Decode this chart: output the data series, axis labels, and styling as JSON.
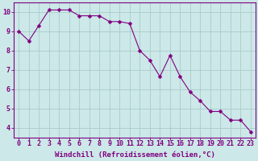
{
  "x_points": [
    0,
    1,
    2,
    3,
    4,
    5,
    6,
    7,
    8,
    9,
    10,
    11,
    12,
    13,
    14,
    15,
    16,
    17,
    18,
    19,
    20,
    21,
    22,
    23
  ],
  "y_points": [
    9.0,
    8.5,
    9.3,
    10.1,
    10.1,
    10.1,
    9.8,
    9.8,
    9.8,
    9.5,
    9.5,
    9.4,
    8.0,
    7.5,
    6.65,
    7.75,
    6.65,
    5.85,
    5.4,
    4.85,
    4.85,
    4.4,
    4.4,
    3.8
  ],
  "line_color": "#800080",
  "marker_color": "#800080",
  "bg_color": "#cce8e8",
  "grid_color": "#aacccc",
  "xlabel": "Windchill (Refroidissement éolien,°C)",
  "xlim": [
    -0.5,
    23.5
  ],
  "ylim": [
    3.5,
    10.5
  ],
  "yticks": [
    4,
    5,
    6,
    7,
    8,
    9,
    10
  ],
  "xticks": [
    0,
    1,
    2,
    3,
    4,
    5,
    6,
    7,
    8,
    9,
    10,
    11,
    12,
    13,
    14,
    15,
    16,
    17,
    18,
    19,
    20,
    21,
    22,
    23
  ],
  "xlabel_fontsize": 6.5,
  "tick_fontsize": 6.0,
  "line_width": 0.8,
  "marker_size": 2.5
}
